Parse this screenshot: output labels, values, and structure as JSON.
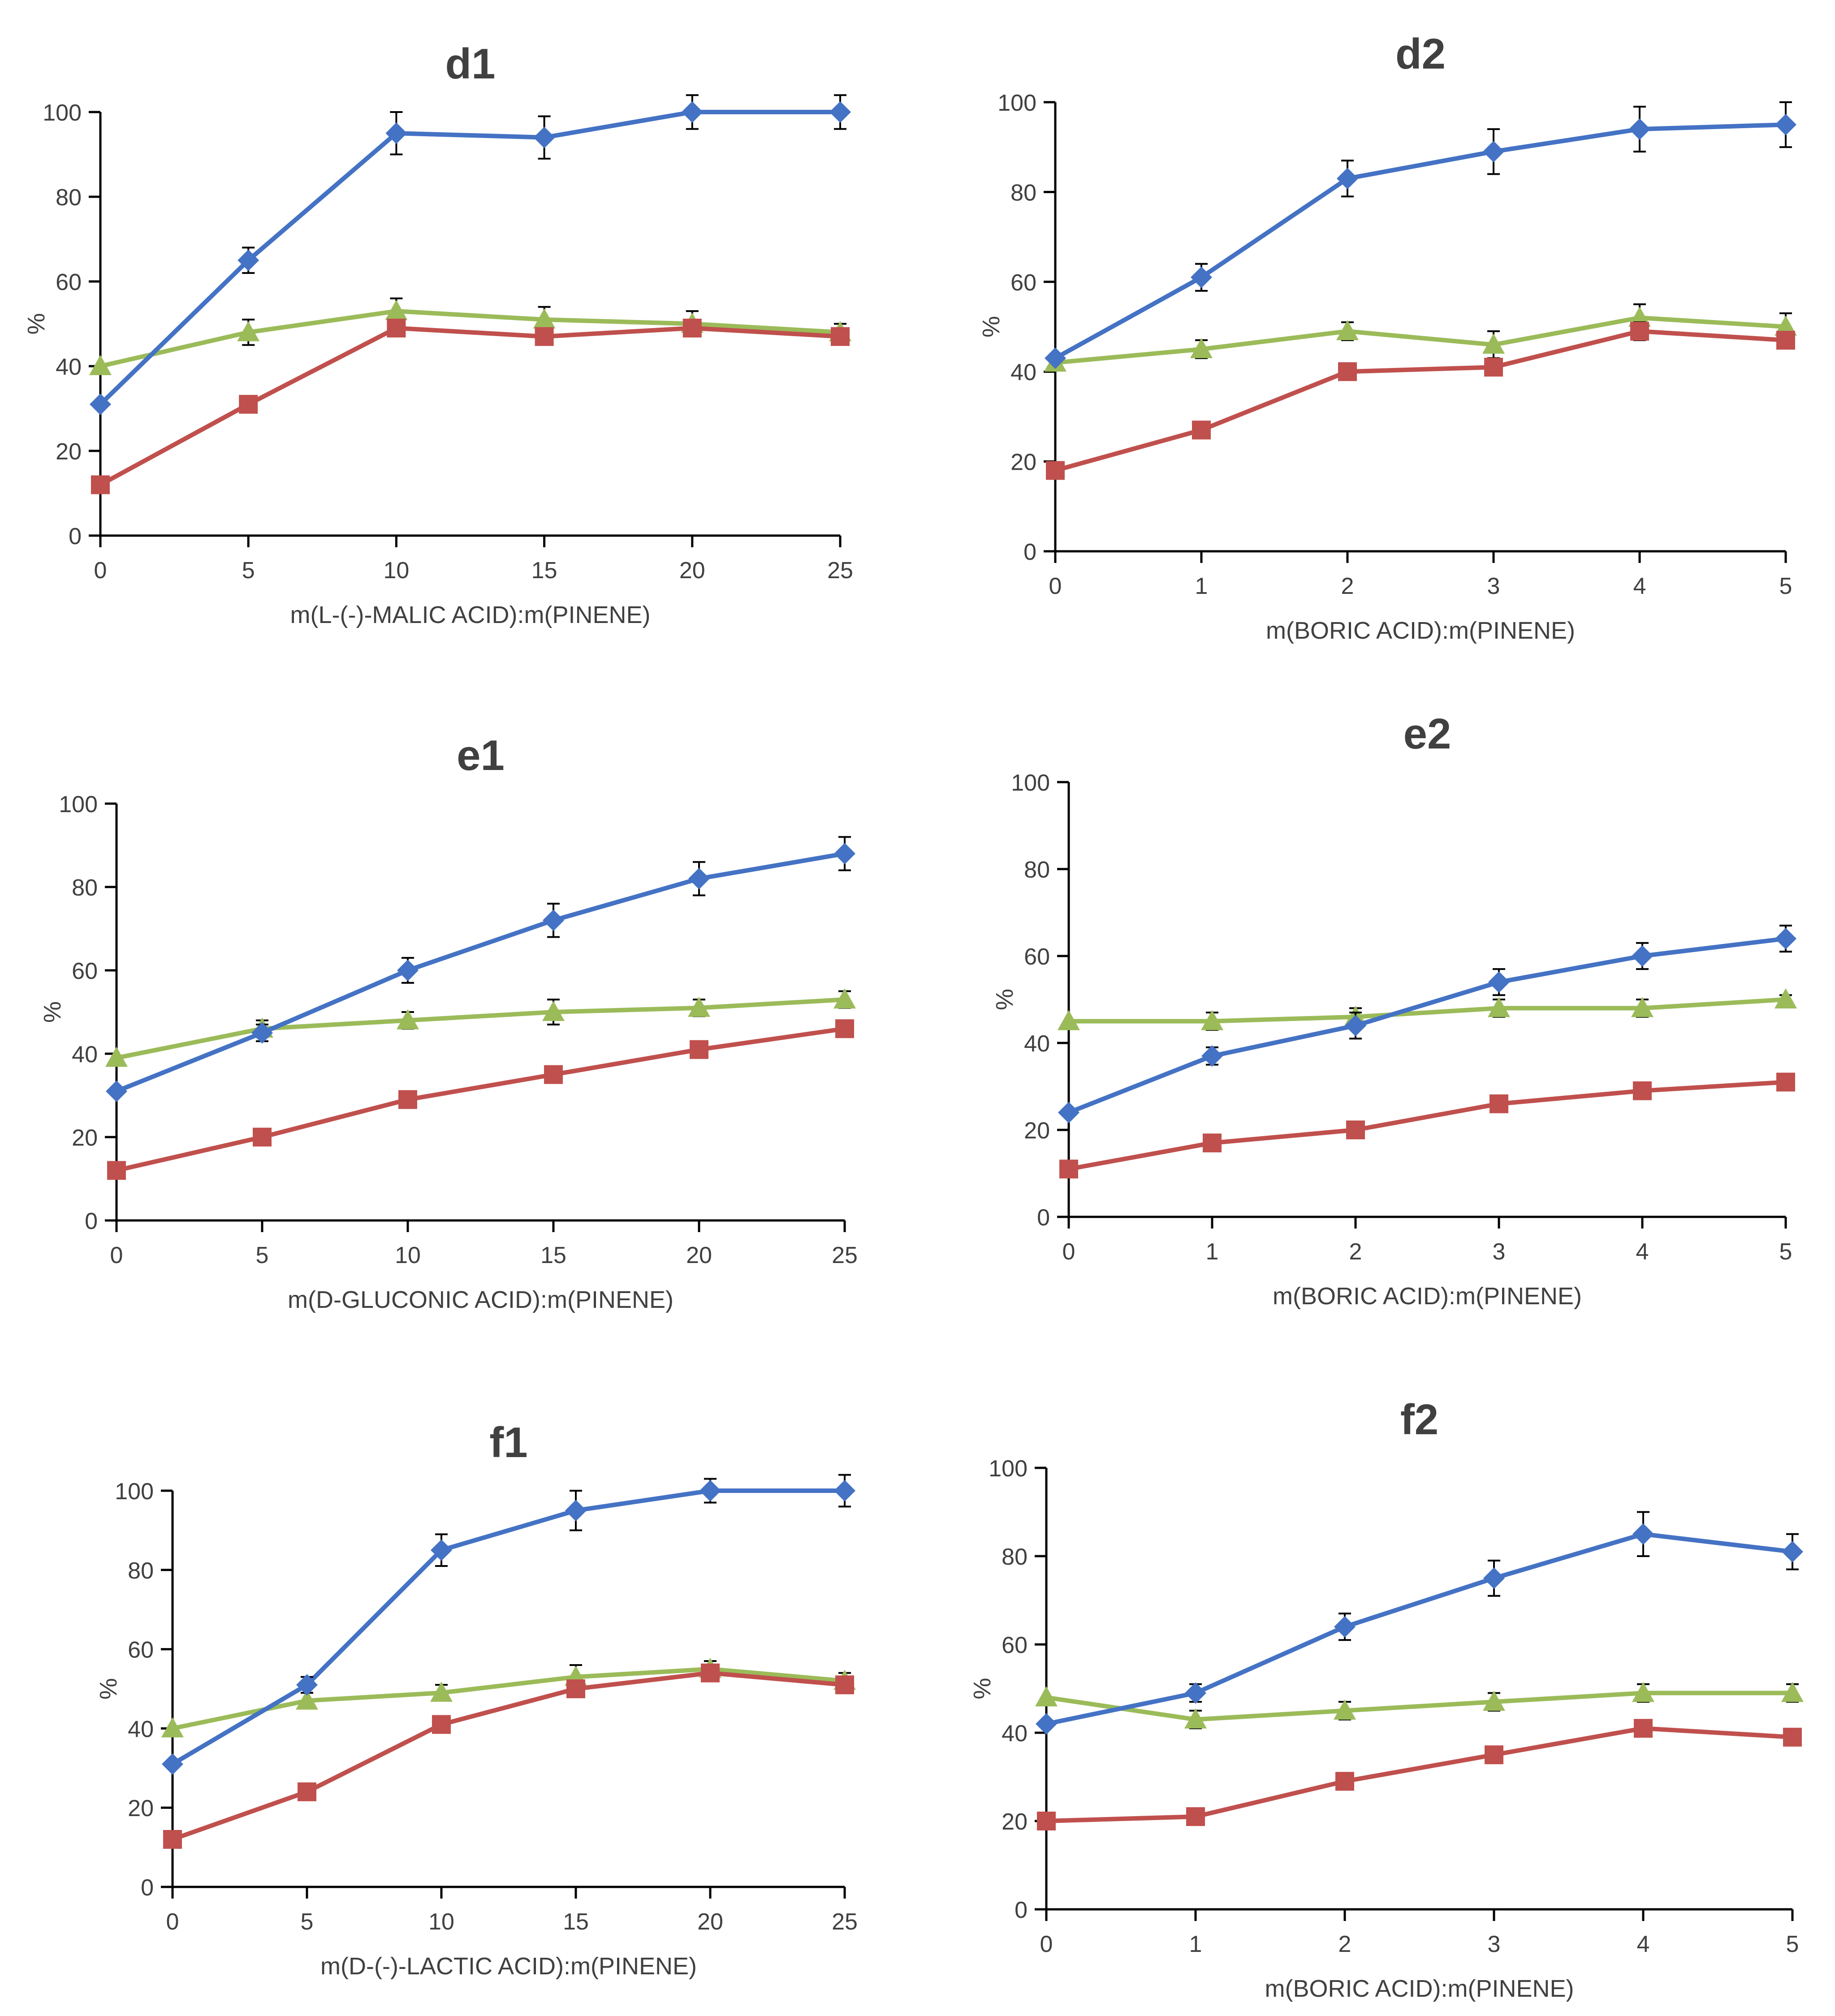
{
  "colors": {
    "blue": "#4472C4",
    "red": "#C0504D",
    "green": "#9BBB59",
    "axis": "#000000",
    "text": "#404040"
  },
  "chart_data": [
    {
      "type": "line",
      "title": "d1",
      "xlabel": "m(L-(-)-MALIC ACID):m(PINENE)",
      "ylabel": "%",
      "x": [
        0,
        5,
        10,
        15,
        20,
        25
      ],
      "xlim": [
        0,
        25
      ],
      "ylim": [
        0,
        100
      ],
      "xticks": [
        0,
        5,
        10,
        15,
        20,
        25
      ],
      "yticks": [
        0,
        20,
        40,
        60,
        80,
        100
      ],
      "grid": false,
      "series": [
        {
          "color": "blue",
          "marker": "diamond",
          "values": [
            31,
            65,
            95,
            94,
            100,
            100
          ],
          "errors": [
            0,
            3,
            5,
            5,
            4,
            4
          ]
        },
        {
          "color": "red",
          "marker": "square",
          "values": [
            12,
            31,
            49,
            47,
            49,
            47
          ],
          "errors": [
            0,
            0,
            0,
            0,
            0,
            0
          ]
        },
        {
          "color": "green",
          "marker": "triangle",
          "values": [
            40,
            48,
            53,
            51,
            50,
            48
          ],
          "errors": [
            0,
            3,
            3,
            3,
            3,
            2
          ]
        }
      ]
    },
    {
      "type": "line",
      "title": "d2",
      "xlabel": "m(BORIC ACID):m(PINENE)",
      "ylabel": "%",
      "x": [
        0,
        1,
        2,
        3,
        4,
        5
      ],
      "xlim": [
        0,
        5
      ],
      "ylim": [
        0,
        100
      ],
      "xticks": [
        0,
        1,
        2,
        3,
        4,
        5
      ],
      "yticks": [
        0,
        20,
        40,
        60,
        80,
        100
      ],
      "grid": false,
      "series": [
        {
          "color": "blue",
          "marker": "diamond",
          "values": [
            43,
            61,
            83,
            89,
            94,
            95
          ],
          "errors": [
            0,
            3,
            4,
            5,
            5,
            5
          ]
        },
        {
          "color": "red",
          "marker": "square",
          "values": [
            18,
            27,
            40,
            41,
            49,
            47
          ],
          "errors": [
            0,
            0,
            0,
            0,
            2,
            0
          ]
        },
        {
          "color": "green",
          "marker": "triangle",
          "values": [
            42,
            45,
            49,
            46,
            52,
            50
          ],
          "errors": [
            0,
            2,
            2,
            3,
            3,
            3
          ]
        }
      ]
    },
    {
      "type": "line",
      "title": "e1",
      "xlabel": "m(D-GLUCONIC ACID):m(PINENE)",
      "ylabel": "%",
      "x": [
        0,
        5,
        10,
        15,
        20,
        25
      ],
      "xlim": [
        0,
        25
      ],
      "ylim": [
        0,
        100
      ],
      "xticks": [
        0,
        5,
        10,
        15,
        20,
        25
      ],
      "yticks": [
        0,
        20,
        40,
        60,
        80,
        100
      ],
      "grid": false,
      "series": [
        {
          "color": "blue",
          "marker": "diamond",
          "values": [
            31,
            45,
            60,
            72,
            82,
            88
          ],
          "errors": [
            0,
            2,
            3,
            4,
            4,
            4
          ]
        },
        {
          "color": "red",
          "marker": "square",
          "values": [
            12,
            20,
            29,
            35,
            41,
            46
          ],
          "errors": [
            0,
            0,
            0,
            0,
            0,
            0
          ]
        },
        {
          "color": "green",
          "marker": "triangle",
          "values": [
            39,
            46,
            48,
            50,
            51,
            53
          ],
          "errors": [
            0,
            2,
            2,
            3,
            2,
            2
          ]
        }
      ]
    },
    {
      "type": "line",
      "title": "e2",
      "xlabel": "m(BORIC ACID):m(PINENE)",
      "ylabel": "%",
      "x": [
        0,
        1,
        2,
        3,
        4,
        5
      ],
      "xlim": [
        0,
        5
      ],
      "ylim": [
        0,
        100
      ],
      "xticks": [
        0,
        1,
        2,
        3,
        4,
        5
      ],
      "yticks": [
        0,
        20,
        40,
        60,
        80,
        100
      ],
      "grid": false,
      "series": [
        {
          "color": "blue",
          "marker": "diamond",
          "values": [
            24,
            37,
            44,
            54,
            60,
            64
          ],
          "errors": [
            0,
            2,
            3,
            3,
            3,
            3
          ]
        },
        {
          "color": "red",
          "marker": "square",
          "values": [
            11,
            17,
            20,
            26,
            29,
            31
          ],
          "errors": [
            0,
            0,
            0,
            0,
            0,
            0
          ]
        },
        {
          "color": "green",
          "marker": "triangle",
          "values": [
            45,
            45,
            46,
            48,
            48,
            50
          ],
          "errors": [
            0,
            2,
            2,
            2,
            2,
            1
          ]
        }
      ]
    },
    {
      "type": "line",
      "title": "f1",
      "xlabel": "m(D-(-)-LACTIC ACID):m(PINENE)",
      "ylabel": "%",
      "x": [
        0,
        5,
        10,
        15,
        20,
        25
      ],
      "xlim": [
        0,
        25
      ],
      "ylim": [
        0,
        100
      ],
      "xticks": [
        0,
        5,
        10,
        15,
        20,
        25
      ],
      "yticks": [
        0,
        20,
        40,
        60,
        80,
        100
      ],
      "grid": false,
      "series": [
        {
          "color": "blue",
          "marker": "diamond",
          "values": [
            31,
            51,
            85,
            95,
            100,
            100
          ],
          "errors": [
            0,
            2,
            4,
            5,
            3,
            4
          ]
        },
        {
          "color": "red",
          "marker": "square",
          "values": [
            12,
            24,
            41,
            50,
            54,
            51
          ],
          "errors": [
            0,
            0,
            0,
            0,
            0,
            0
          ]
        },
        {
          "color": "green",
          "marker": "triangle",
          "values": [
            40,
            47,
            49,
            53,
            55,
            52
          ],
          "errors": [
            0,
            2,
            2,
            3,
            2,
            2
          ]
        }
      ]
    },
    {
      "type": "line",
      "title": "f2",
      "xlabel": "m(BORIC ACID):m(PINENE)",
      "ylabel": "%",
      "x": [
        0,
        1,
        2,
        3,
        4,
        5
      ],
      "xlim": [
        0,
        5
      ],
      "ylim": [
        0,
        100
      ],
      "xticks": [
        0,
        1,
        2,
        3,
        4,
        5
      ],
      "yticks": [
        0,
        20,
        40,
        60,
        80,
        100
      ],
      "grid": false,
      "series": [
        {
          "color": "blue",
          "marker": "diamond",
          "values": [
            42,
            49,
            64,
            75,
            85,
            81
          ],
          "errors": [
            0,
            2,
            3,
            4,
            5,
            4
          ]
        },
        {
          "color": "red",
          "marker": "square",
          "values": [
            20,
            21,
            29,
            35,
            41,
            39
          ],
          "errors": [
            0,
            0,
            0,
            0,
            0,
            0
          ]
        },
        {
          "color": "green",
          "marker": "triangle",
          "values": [
            48,
            43,
            45,
            47,
            49,
            49
          ],
          "errors": [
            0,
            2,
            2,
            2,
            2,
            2
          ]
        }
      ]
    }
  ]
}
